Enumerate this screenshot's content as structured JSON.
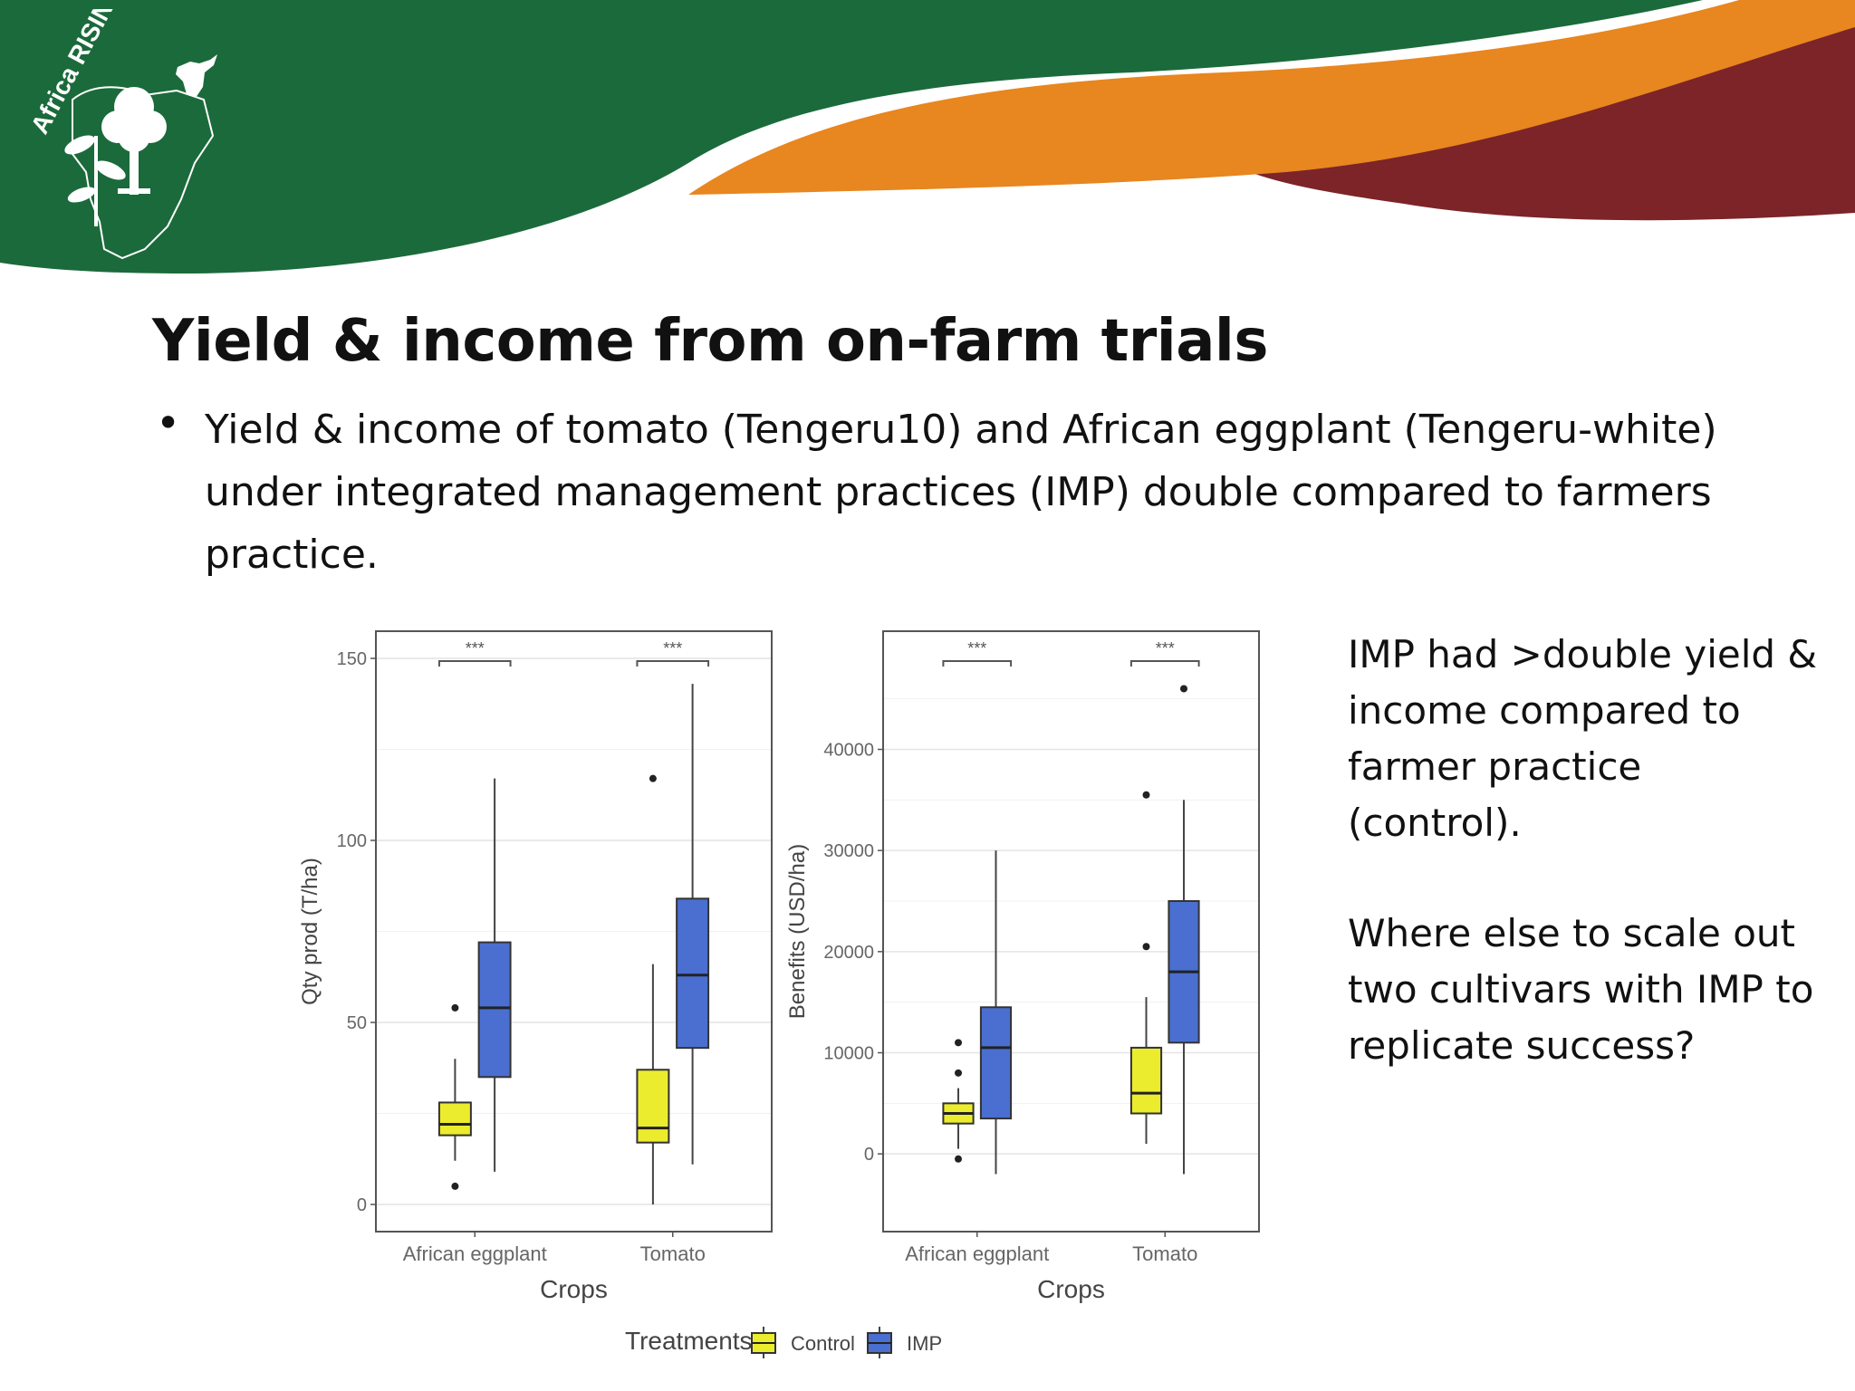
{
  "colors": {
    "banner_green": "#1b6a3b",
    "banner_orange": "#e8861f",
    "banner_maroon": "#7c2428",
    "control": "#ecec2e",
    "imp": "#4a6fd0"
  },
  "logo": {
    "text": "Africa RISING",
    "icon": "africa-map-tree-cow-logo"
  },
  "slide": {
    "title": "Yield & income from on-farm trials",
    "bullet": "Yield & income of tomato (Tengeru10) and African eggplant (Tengeru-white) under integrated management practices (IMP) double compared to farmers practice."
  },
  "side_notes": {
    "note1": "IMP had >double yield & income compared to farmer practice (control).",
    "note2": "Where else to scale out two cultivars with IMP to replicate success?"
  },
  "chart_data": [
    {
      "type": "boxplot",
      "xlabel": "Crops",
      "ylabel": "Qty prod (T/ha)",
      "ylim": [
        0,
        150
      ],
      "yticks": [
        0,
        50,
        100,
        150
      ],
      "ytick_labels": [
        "0",
        "50",
        "100",
        "150"
      ],
      "categories": [
        "African eggplant",
        "Tomato"
      ],
      "significance": [
        "***",
        "***"
      ],
      "grid": true,
      "series": [
        {
          "name": "Control",
          "boxes": [
            {
              "whisker_low": 12,
              "q1": 19,
              "median": 22,
              "q3": 28,
              "whisker_high": 40,
              "outliers": [
                5,
                54
              ]
            },
            {
              "whisker_low": 0,
              "q1": 17,
              "median": 21,
              "q3": 37,
              "whisker_high": 66,
              "outliers": [
                117
              ]
            }
          ]
        },
        {
          "name": "IMP",
          "boxes": [
            {
              "whisker_low": 9,
              "q1": 35,
              "median": 54,
              "q3": 72,
              "whisker_high": 117,
              "outliers": []
            },
            {
              "whisker_low": 11,
              "q1": 43,
              "median": 63,
              "q3": 84,
              "whisker_high": 143,
              "outliers": []
            }
          ]
        }
      ]
    },
    {
      "type": "boxplot",
      "xlabel": "Crops",
      "ylabel": "Benefits (USD/ha)",
      "ylim": [
        -5000,
        49000
      ],
      "yticks": [
        0,
        10000,
        20000,
        30000,
        40000
      ],
      "ytick_labels": [
        "0",
        "10000",
        "20000",
        "30000",
        "40000"
      ],
      "categories": [
        "African eggplant",
        "Tomato"
      ],
      "significance": [
        "***",
        "***"
      ],
      "grid": true,
      "series": [
        {
          "name": "Control",
          "boxes": [
            {
              "whisker_low": 500,
              "q1": 3000,
              "median": 4000,
              "q3": 5000,
              "whisker_high": 6500,
              "outliers": [
                -500,
                8000,
                11000
              ]
            },
            {
              "whisker_low": 1000,
              "q1": 4000,
              "median": 6000,
              "q3": 10500,
              "whisker_high": 15500,
              "outliers": [
                20500,
                35500
              ]
            }
          ]
        },
        {
          "name": "IMP",
          "boxes": [
            {
              "whisker_low": -2000,
              "q1": 3500,
              "median": 10500,
              "q3": 14500,
              "whisker_high": 30000,
              "outliers": []
            },
            {
              "whisker_low": -2000,
              "q1": 11000,
              "median": 18000,
              "q3": 25000,
              "whisker_high": 35000,
              "outliers": [
                46000
              ]
            }
          ]
        }
      ]
    }
  ],
  "legend": {
    "title": "Treatments",
    "items": [
      "Control",
      "IMP"
    ]
  }
}
